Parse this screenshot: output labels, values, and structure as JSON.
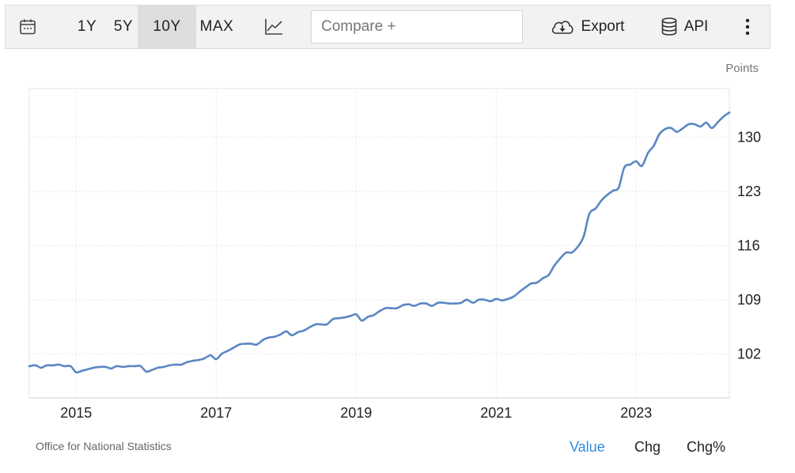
{
  "toolbar": {
    "ranges": [
      "1Y",
      "5Y",
      "10Y",
      "MAX"
    ],
    "active_range": "10Y",
    "compare_placeholder": "Compare +",
    "export_label": "Export",
    "api_label": "API",
    "icons": [
      "calendar-icon",
      "line-chart-icon",
      "cloud-download-icon",
      "database-icon",
      "more-vertical-icon"
    ]
  },
  "footer": {
    "source": "Office for National Statistics",
    "modes": [
      "Value",
      "Chg",
      "Chg%"
    ],
    "active_mode": "Value"
  },
  "chart_data": {
    "type": "line",
    "units_label": "Points",
    "y_ticks": [
      102,
      109,
      116,
      123,
      130
    ],
    "x_tick_labels": [
      "2015",
      "2017",
      "2019",
      "2021",
      "2023"
    ],
    "x_tick_years": [
      2015,
      2017,
      2019,
      2021,
      2023
    ],
    "xlim": [
      2014.33,
      2024.33
    ],
    "ylim": [
      96.3,
      136.3
    ],
    "grid": true,
    "line_color": "#5b87c2",
    "series": [
      {
        "x": [
          2014.33,
          2014.42,
          2014.5,
          2014.58,
          2014.67,
          2014.75,
          2014.83,
          2014.92,
          2015.0,
          2015.08,
          2015.17,
          2015.25,
          2015.33,
          2015.42,
          2015.5,
          2015.58,
          2015.67,
          2015.75,
          2015.83,
          2015.92,
          2016.0,
          2016.08,
          2016.17,
          2016.25,
          2016.33,
          2016.42,
          2016.5,
          2016.58,
          2016.67,
          2016.75,
          2016.83,
          2016.92,
          2017.0,
          2017.08,
          2017.17,
          2017.25,
          2017.33,
          2017.42,
          2017.5,
          2017.58,
          2017.67,
          2017.75,
          2017.83,
          2017.92,
          2018.0,
          2018.08,
          2018.17,
          2018.25,
          2018.33,
          2018.42,
          2018.5,
          2018.58,
          2018.67,
          2018.75,
          2018.83,
          2018.92,
          2019.0,
          2019.08,
          2019.17,
          2019.25,
          2019.33,
          2019.42,
          2019.5,
          2019.58,
          2019.67,
          2019.75,
          2019.83,
          2019.92,
          2020.0,
          2020.08,
          2020.17,
          2020.25,
          2020.33,
          2020.42,
          2020.5,
          2020.58,
          2020.67,
          2020.75,
          2020.83,
          2020.92,
          2021.0,
          2021.08,
          2021.17,
          2021.25,
          2021.33,
          2021.42,
          2021.5,
          2021.58,
          2021.67,
          2021.75,
          2021.83,
          2021.92,
          2022.0,
          2022.08,
          2022.17,
          2022.25,
          2022.33,
          2022.42,
          2022.5,
          2022.58,
          2022.67,
          2022.75,
          2022.83,
          2022.92,
          2023.0,
          2023.08,
          2023.17,
          2023.25,
          2023.33,
          2023.42,
          2023.5,
          2023.58,
          2023.67,
          2023.75,
          2023.83,
          2023.92,
          2024.0,
          2024.08,
          2024.17,
          2024.25,
          2024.33
        ],
        "values": [
          100.4,
          100.5,
          100.2,
          100.5,
          100.5,
          100.6,
          100.4,
          100.4,
          99.6,
          99.8,
          100.0,
          100.2,
          100.3,
          100.3,
          100.1,
          100.4,
          100.3,
          100.4,
          100.4,
          100.4,
          99.7,
          99.9,
          100.2,
          100.3,
          100.5,
          100.6,
          100.6,
          100.9,
          101.1,
          101.2,
          101.4,
          101.8,
          101.3,
          102.0,
          102.4,
          102.8,
          103.2,
          103.3,
          103.3,
          103.2,
          103.8,
          104.1,
          104.2,
          104.5,
          104.9,
          104.4,
          104.8,
          105.0,
          105.4,
          105.8,
          105.8,
          105.8,
          106.5,
          106.6,
          106.7,
          106.9,
          107.1,
          106.3,
          106.8,
          107.0,
          107.5,
          107.9,
          107.9,
          107.9,
          108.3,
          108.4,
          108.2,
          108.5,
          108.5,
          108.2,
          108.6,
          108.6,
          108.5,
          108.5,
          108.6,
          109.0,
          108.6,
          109.0,
          109.0,
          108.8,
          109.1,
          108.9,
          109.1,
          109.4,
          110.0,
          110.6,
          111.1,
          111.2,
          111.8,
          112.2,
          113.4,
          114.4,
          115.1,
          115.1,
          115.9,
          117.2,
          120.1,
          120.8,
          121.8,
          122.5,
          123.1,
          123.5,
          126.1,
          126.5,
          126.9,
          126.3,
          128.0,
          128.9,
          130.4,
          131.1,
          131.2,
          130.7,
          131.2,
          131.7,
          131.7,
          131.4,
          131.9,
          131.2,
          132.0,
          132.7,
          133.2
        ]
      }
    ]
  }
}
